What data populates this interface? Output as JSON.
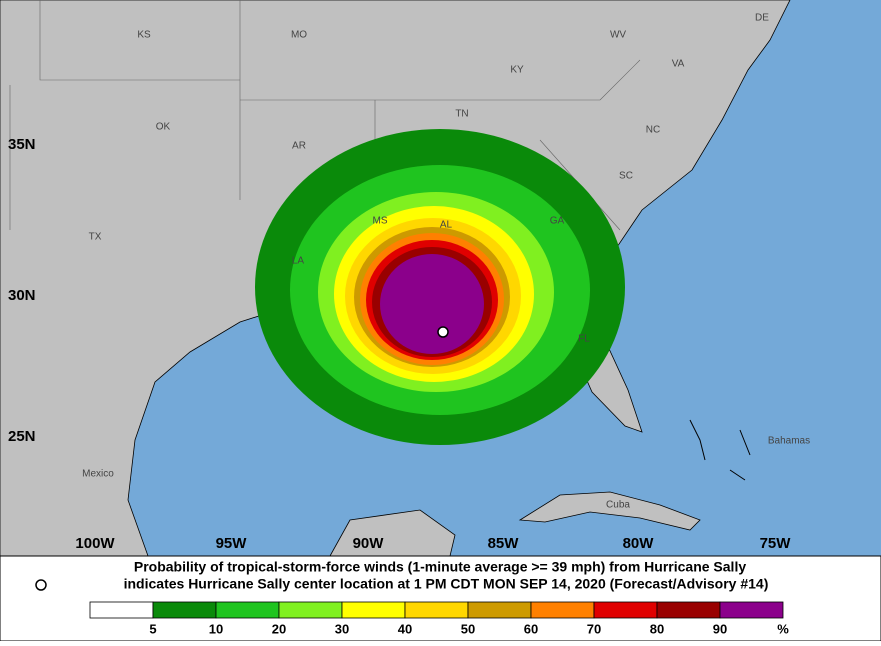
{
  "map": {
    "regions": [
      "KS",
      "MO",
      "WV",
      "VA",
      "KY",
      "TN",
      "NC",
      "OK",
      "AR",
      "SC",
      "MS",
      "AL",
      "GA",
      "TX",
      "LA",
      "FL",
      "DE",
      "Mexico",
      "Cuba",
      "Bahamas"
    ],
    "latitude_labels": [
      "35N",
      "30N",
      "25N"
    ],
    "longitude_labels": [
      "100W",
      "95W",
      "90W",
      "85W",
      "80W",
      "75W"
    ]
  },
  "caption": {
    "line1": "Probability of tropical-storm-force winds (1-minute average >= 39 mph) from Hurricane Sally",
    "line2": "indicates Hurricane Sally center location at 1 PM CDT MON SEP 14, 2020 (Forecast/Advisory #14)"
  },
  "legend": {
    "colors": [
      "#ffffff",
      "#0a8a0a",
      "#1fc41f",
      "#80f020",
      "#ffff00",
      "#ffd700",
      "#cd9a00",
      "#ff8000",
      "#e00000",
      "#990000",
      "#8b008b"
    ],
    "ticks": [
      "5",
      "10",
      "20",
      "30",
      "40",
      "50",
      "60",
      "70",
      "80",
      "90"
    ],
    "unit": "%"
  }
}
